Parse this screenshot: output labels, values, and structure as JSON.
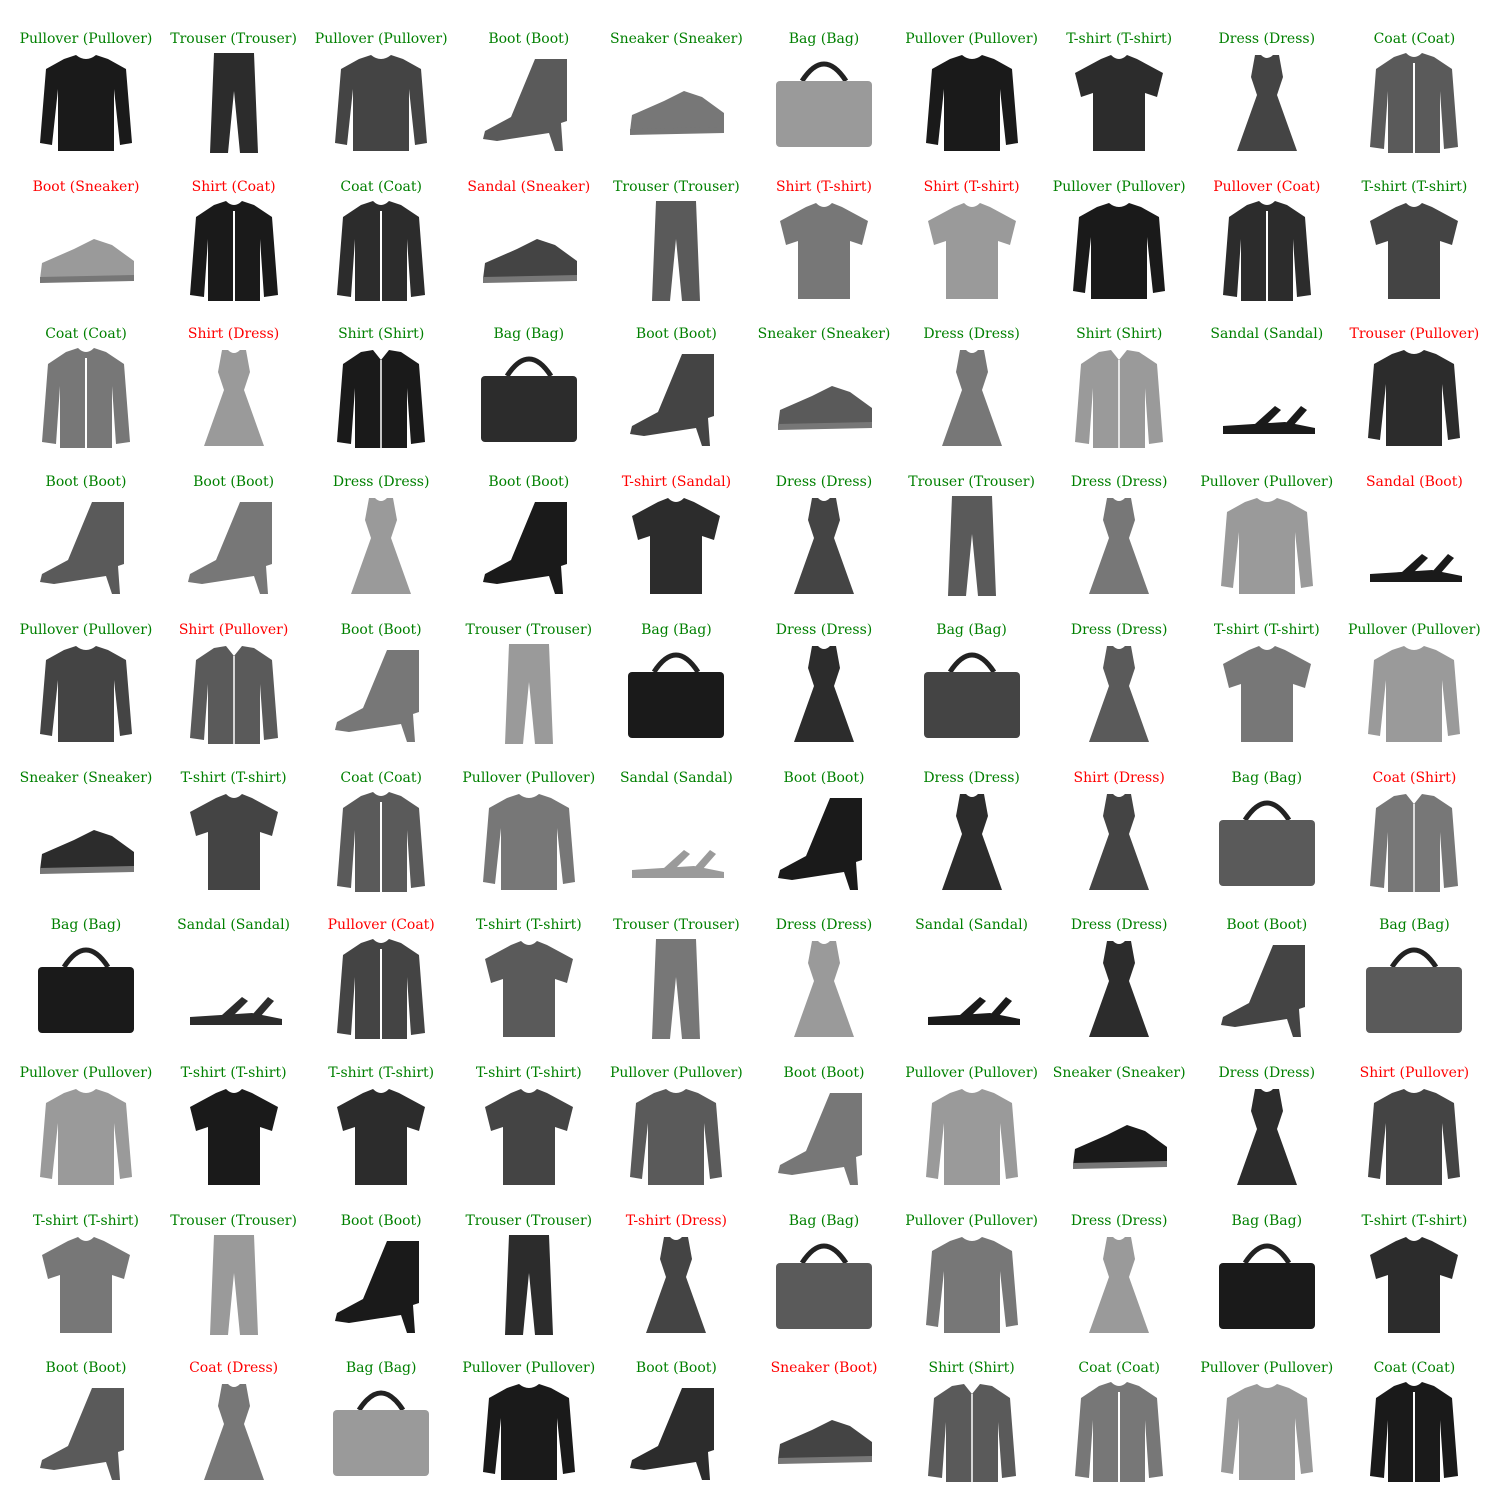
{
  "colors": {
    "correct": "#008000",
    "incorrect": "#ff0000"
  },
  "panels": [
    {
      "predicted": "Pullover",
      "actual": "Pullover",
      "text": "Pullover (Pullover)",
      "correct": true,
      "icon": "pullover-icon"
    },
    {
      "predicted": "Trouser",
      "actual": "Trouser",
      "text": "Trouser (Trouser)",
      "correct": true,
      "icon": "trouser-icon"
    },
    {
      "predicted": "Pullover",
      "actual": "Pullover",
      "text": "Pullover (Pullover)",
      "correct": true,
      "icon": "pullover-icon"
    },
    {
      "predicted": "Boot",
      "actual": "Boot",
      "text": "Boot (Boot)",
      "correct": true,
      "icon": "boot-icon"
    },
    {
      "predicted": "Sneaker",
      "actual": "Sneaker",
      "text": "Sneaker (Sneaker)",
      "correct": true,
      "icon": "sneaker-icon"
    },
    {
      "predicted": "Bag",
      "actual": "Bag",
      "text": "Bag (Bag)",
      "correct": true,
      "icon": "bag-icon"
    },
    {
      "predicted": "Pullover",
      "actual": "Pullover",
      "text": "Pullover (Pullover)",
      "correct": true,
      "icon": "pullover-icon"
    },
    {
      "predicted": "T-shirt",
      "actual": "T-shirt",
      "text": "T-shirt (T-shirt)",
      "correct": true,
      "icon": "tshirt-icon"
    },
    {
      "predicted": "Dress",
      "actual": "Dress",
      "text": "Dress (Dress)",
      "correct": true,
      "icon": "dress-icon"
    },
    {
      "predicted": "Coat",
      "actual": "Coat",
      "text": "Coat (Coat)",
      "correct": true,
      "icon": "coat-icon"
    },
    {
      "predicted": "Boot",
      "actual": "Sneaker",
      "text": "Boot (Sneaker)",
      "correct": false,
      "icon": "sneaker-icon"
    },
    {
      "predicted": "Shirt",
      "actual": "Coat",
      "text": "Shirt (Coat)",
      "correct": false,
      "icon": "coat-icon"
    },
    {
      "predicted": "Coat",
      "actual": "Coat",
      "text": "Coat (Coat)",
      "correct": true,
      "icon": "coat-icon"
    },
    {
      "predicted": "Sandal",
      "actual": "Sneaker",
      "text": "Sandal (Sneaker)",
      "correct": false,
      "icon": "sneaker-icon"
    },
    {
      "predicted": "Trouser",
      "actual": "Trouser",
      "text": "Trouser (Trouser)",
      "correct": true,
      "icon": "trouser-icon"
    },
    {
      "predicted": "Shirt",
      "actual": "T-shirt",
      "text": "Shirt (T-shirt)",
      "correct": false,
      "icon": "tshirt-icon"
    },
    {
      "predicted": "Shirt",
      "actual": "T-shirt",
      "text": "Shirt (T-shirt)",
      "correct": false,
      "icon": "tshirt-icon"
    },
    {
      "predicted": "Pullover",
      "actual": "Pullover",
      "text": "Pullover (Pullover)",
      "correct": true,
      "icon": "pullover-icon"
    },
    {
      "predicted": "Pullover",
      "actual": "Coat",
      "text": "Pullover (Coat)",
      "correct": false,
      "icon": "coat-icon"
    },
    {
      "predicted": "T-shirt",
      "actual": "T-shirt",
      "text": "T-shirt (T-shirt)",
      "correct": true,
      "icon": "tshirt-icon"
    },
    {
      "predicted": "Coat",
      "actual": "Coat",
      "text": "Coat (Coat)",
      "correct": true,
      "icon": "coat-icon"
    },
    {
      "predicted": "Shirt",
      "actual": "Dress",
      "text": "Shirt (Dress)",
      "correct": false,
      "icon": "dress-icon"
    },
    {
      "predicted": "Shirt",
      "actual": "Shirt",
      "text": "Shirt (Shirt)",
      "correct": true,
      "icon": "shirt-icon"
    },
    {
      "predicted": "Bag",
      "actual": "Bag",
      "text": "Bag (Bag)",
      "correct": true,
      "icon": "bag-icon"
    },
    {
      "predicted": "Boot",
      "actual": "Boot",
      "text": "Boot (Boot)",
      "correct": true,
      "icon": "boot-icon"
    },
    {
      "predicted": "Sneaker",
      "actual": "Sneaker",
      "text": "Sneaker (Sneaker)",
      "correct": true,
      "icon": "sneaker-icon"
    },
    {
      "predicted": "Dress",
      "actual": "Dress",
      "text": "Dress (Dress)",
      "correct": true,
      "icon": "dress-icon"
    },
    {
      "predicted": "Shirt",
      "actual": "Shirt",
      "text": "Shirt (Shirt)",
      "correct": true,
      "icon": "shirt-icon"
    },
    {
      "predicted": "Sandal",
      "actual": "Sandal",
      "text": "Sandal (Sandal)",
      "correct": true,
      "icon": "sandal-icon"
    },
    {
      "predicted": "Trouser",
      "actual": "Pullover",
      "text": "Trouser (Pullover)",
      "correct": false,
      "icon": "pullover-icon"
    },
    {
      "predicted": "Boot",
      "actual": "Boot",
      "text": "Boot (Boot)",
      "correct": true,
      "icon": "boot-icon"
    },
    {
      "predicted": "Boot",
      "actual": "Boot",
      "text": "Boot (Boot)",
      "correct": true,
      "icon": "boot-icon"
    },
    {
      "predicted": "Dress",
      "actual": "Dress",
      "text": "Dress (Dress)",
      "correct": true,
      "icon": "dress-icon"
    },
    {
      "predicted": "Boot",
      "actual": "Boot",
      "text": "Boot (Boot)",
      "correct": true,
      "icon": "boot-icon"
    },
    {
      "predicted": "T-shirt",
      "actual": "Sandal",
      "text": "T-shirt (Sandal)",
      "correct": false,
      "icon": "tshirt-icon"
    },
    {
      "predicted": "Dress",
      "actual": "Dress",
      "text": "Dress (Dress)",
      "correct": true,
      "icon": "dress-icon"
    },
    {
      "predicted": "Trouser",
      "actual": "Trouser",
      "text": "Trouser (Trouser)",
      "correct": true,
      "icon": "trouser-icon"
    },
    {
      "predicted": "Dress",
      "actual": "Dress",
      "text": "Dress (Dress)",
      "correct": true,
      "icon": "dress-icon"
    },
    {
      "predicted": "Pullover",
      "actual": "Pullover",
      "text": "Pullover (Pullover)",
      "correct": true,
      "icon": "pullover-icon"
    },
    {
      "predicted": "Sandal",
      "actual": "Boot",
      "text": "Sandal (Boot)",
      "correct": false,
      "icon": "sandal-icon"
    },
    {
      "predicted": "Pullover",
      "actual": "Pullover",
      "text": "Pullover (Pullover)",
      "correct": true,
      "icon": "pullover-icon"
    },
    {
      "predicted": "Shirt",
      "actual": "Pullover",
      "text": "Shirt (Pullover)",
      "correct": false,
      "icon": "shirt-icon"
    },
    {
      "predicted": "Boot",
      "actual": "Boot",
      "text": "Boot (Boot)",
      "correct": true,
      "icon": "boot-icon"
    },
    {
      "predicted": "Trouser",
      "actual": "Trouser",
      "text": "Trouser (Trouser)",
      "correct": true,
      "icon": "trouser-icon"
    },
    {
      "predicted": "Bag",
      "actual": "Bag",
      "text": "Bag (Bag)",
      "correct": true,
      "icon": "bag-icon"
    },
    {
      "predicted": "Dress",
      "actual": "Dress",
      "text": "Dress (Dress)",
      "correct": true,
      "icon": "dress-icon"
    },
    {
      "predicted": "Bag",
      "actual": "Bag",
      "text": "Bag (Bag)",
      "correct": true,
      "icon": "bag-icon"
    },
    {
      "predicted": "Dress",
      "actual": "Dress",
      "text": "Dress (Dress)",
      "correct": true,
      "icon": "dress-icon"
    },
    {
      "predicted": "T-shirt",
      "actual": "T-shirt",
      "text": "T-shirt (T-shirt)",
      "correct": true,
      "icon": "tshirt-icon"
    },
    {
      "predicted": "Pullover",
      "actual": "Pullover",
      "text": "Pullover (Pullover)",
      "correct": true,
      "icon": "pullover-icon"
    },
    {
      "predicted": "Sneaker",
      "actual": "Sneaker",
      "text": "Sneaker (Sneaker)",
      "correct": true,
      "icon": "sneaker-icon"
    },
    {
      "predicted": "T-shirt",
      "actual": "T-shirt",
      "text": "T-shirt (T-shirt)",
      "correct": true,
      "icon": "tshirt-icon"
    },
    {
      "predicted": "Coat",
      "actual": "Coat",
      "text": "Coat (Coat)",
      "correct": true,
      "icon": "coat-icon"
    },
    {
      "predicted": "Pullover",
      "actual": "Pullover",
      "text": "Pullover (Pullover)",
      "correct": true,
      "icon": "pullover-icon"
    },
    {
      "predicted": "Sandal",
      "actual": "Sandal",
      "text": "Sandal (Sandal)",
      "correct": true,
      "icon": "sandal-icon"
    },
    {
      "predicted": "Boot",
      "actual": "Boot",
      "text": "Boot (Boot)",
      "correct": true,
      "icon": "boot-icon"
    },
    {
      "predicted": "Dress",
      "actual": "Dress",
      "text": "Dress (Dress)",
      "correct": true,
      "icon": "dress-icon"
    },
    {
      "predicted": "Shirt",
      "actual": "Dress",
      "text": "Shirt (Dress)",
      "correct": false,
      "icon": "dress-icon"
    },
    {
      "predicted": "Bag",
      "actual": "Bag",
      "text": "Bag (Bag)",
      "correct": true,
      "icon": "bag-icon"
    },
    {
      "predicted": "Coat",
      "actual": "Shirt",
      "text": "Coat (Shirt)",
      "correct": false,
      "icon": "shirt-icon"
    },
    {
      "predicted": "Bag",
      "actual": "Bag",
      "text": "Bag (Bag)",
      "correct": true,
      "icon": "bag-icon"
    },
    {
      "predicted": "Sandal",
      "actual": "Sandal",
      "text": "Sandal (Sandal)",
      "correct": true,
      "icon": "sandal-icon"
    },
    {
      "predicted": "Pullover",
      "actual": "Coat",
      "text": "Pullover (Coat)",
      "correct": false,
      "icon": "coat-icon"
    },
    {
      "predicted": "T-shirt",
      "actual": "T-shirt",
      "text": "T-shirt (T-shirt)",
      "correct": true,
      "icon": "tshirt-icon"
    },
    {
      "predicted": "Trouser",
      "actual": "Trouser",
      "text": "Trouser (Trouser)",
      "correct": true,
      "icon": "trouser-icon"
    },
    {
      "predicted": "Dress",
      "actual": "Dress",
      "text": "Dress (Dress)",
      "correct": true,
      "icon": "dress-icon"
    },
    {
      "predicted": "Sandal",
      "actual": "Sandal",
      "text": "Sandal (Sandal)",
      "correct": true,
      "icon": "sandal-icon"
    },
    {
      "predicted": "Dress",
      "actual": "Dress",
      "text": "Dress (Dress)",
      "correct": true,
      "icon": "dress-icon"
    },
    {
      "predicted": "Boot",
      "actual": "Boot",
      "text": "Boot (Boot)",
      "correct": true,
      "icon": "boot-icon"
    },
    {
      "predicted": "Bag",
      "actual": "Bag",
      "text": "Bag (Bag)",
      "correct": true,
      "icon": "bag-icon"
    },
    {
      "predicted": "Pullover",
      "actual": "Pullover",
      "text": "Pullover (Pullover)",
      "correct": true,
      "icon": "pullover-icon"
    },
    {
      "predicted": "T-shirt",
      "actual": "T-shirt",
      "text": "T-shirt (T-shirt)",
      "correct": true,
      "icon": "tshirt-icon"
    },
    {
      "predicted": "T-shirt",
      "actual": "T-shirt",
      "text": "T-shirt (T-shirt)",
      "correct": true,
      "icon": "tshirt-icon"
    },
    {
      "predicted": "T-shirt",
      "actual": "T-shirt",
      "text": "T-shirt (T-shirt)",
      "correct": true,
      "icon": "tshirt-icon"
    },
    {
      "predicted": "Pullover",
      "actual": "Pullover",
      "text": "Pullover (Pullover)",
      "correct": true,
      "icon": "pullover-icon"
    },
    {
      "predicted": "Boot",
      "actual": "Boot",
      "text": "Boot (Boot)",
      "correct": true,
      "icon": "boot-icon"
    },
    {
      "predicted": "Pullover",
      "actual": "Pullover",
      "text": "Pullover (Pullover)",
      "correct": true,
      "icon": "pullover-icon"
    },
    {
      "predicted": "Sneaker",
      "actual": "Sneaker",
      "text": "Sneaker (Sneaker)",
      "correct": true,
      "icon": "sneaker-icon"
    },
    {
      "predicted": "Dress",
      "actual": "Dress",
      "text": "Dress (Dress)",
      "correct": true,
      "icon": "dress-icon"
    },
    {
      "predicted": "Shirt",
      "actual": "Pullover",
      "text": "Shirt (Pullover)",
      "correct": false,
      "icon": "pullover-icon"
    },
    {
      "predicted": "T-shirt",
      "actual": "T-shirt",
      "text": "T-shirt (T-shirt)",
      "correct": true,
      "icon": "tshirt-icon"
    },
    {
      "predicted": "Trouser",
      "actual": "Trouser",
      "text": "Trouser (Trouser)",
      "correct": true,
      "icon": "trouser-icon"
    },
    {
      "predicted": "Boot",
      "actual": "Boot",
      "text": "Boot (Boot)",
      "correct": true,
      "icon": "boot-icon"
    },
    {
      "predicted": "Trouser",
      "actual": "Trouser",
      "text": "Trouser (Trouser)",
      "correct": true,
      "icon": "trouser-icon"
    },
    {
      "predicted": "T-shirt",
      "actual": "Dress",
      "text": "T-shirt (Dress)",
      "correct": false,
      "icon": "dress-icon"
    },
    {
      "predicted": "Bag",
      "actual": "Bag",
      "text": "Bag (Bag)",
      "correct": true,
      "icon": "bag-icon"
    },
    {
      "predicted": "Pullover",
      "actual": "Pullover",
      "text": "Pullover (Pullover)",
      "correct": true,
      "icon": "pullover-icon"
    },
    {
      "predicted": "Dress",
      "actual": "Dress",
      "text": "Dress (Dress)",
      "correct": true,
      "icon": "dress-icon"
    },
    {
      "predicted": "Bag",
      "actual": "Bag",
      "text": "Bag (Bag)",
      "correct": true,
      "icon": "bag-icon"
    },
    {
      "predicted": "T-shirt",
      "actual": "T-shirt",
      "text": "T-shirt (T-shirt)",
      "correct": true,
      "icon": "tshirt-icon"
    },
    {
      "predicted": "Boot",
      "actual": "Boot",
      "text": "Boot (Boot)",
      "correct": true,
      "icon": "boot-icon"
    },
    {
      "predicted": "Coat",
      "actual": "Dress",
      "text": "Coat (Dress)",
      "correct": false,
      "icon": "dress-icon"
    },
    {
      "predicted": "Bag",
      "actual": "Bag",
      "text": "Bag (Bag)",
      "correct": true,
      "icon": "bag-icon"
    },
    {
      "predicted": "Pullover",
      "actual": "Pullover",
      "text": "Pullover (Pullover)",
      "correct": true,
      "icon": "pullover-icon"
    },
    {
      "predicted": "Boot",
      "actual": "Boot",
      "text": "Boot (Boot)",
      "correct": true,
      "icon": "boot-icon"
    },
    {
      "predicted": "Sneaker",
      "actual": "Boot",
      "text": "Sneaker (Boot)",
      "correct": false,
      "icon": "sneaker-icon"
    },
    {
      "predicted": "Shirt",
      "actual": "Shirt",
      "text": "Shirt (Shirt)",
      "correct": true,
      "icon": "shirt-icon"
    },
    {
      "predicted": "Coat",
      "actual": "Coat",
      "text": "Coat (Coat)",
      "correct": true,
      "icon": "coat-icon"
    },
    {
      "predicted": "Pullover",
      "actual": "Pullover",
      "text": "Pullover (Pullover)",
      "correct": true,
      "icon": "pullover-icon"
    },
    {
      "predicted": "Coat",
      "actual": "Coat",
      "text": "Coat (Coat)",
      "correct": true,
      "icon": "coat-icon"
    }
  ]
}
